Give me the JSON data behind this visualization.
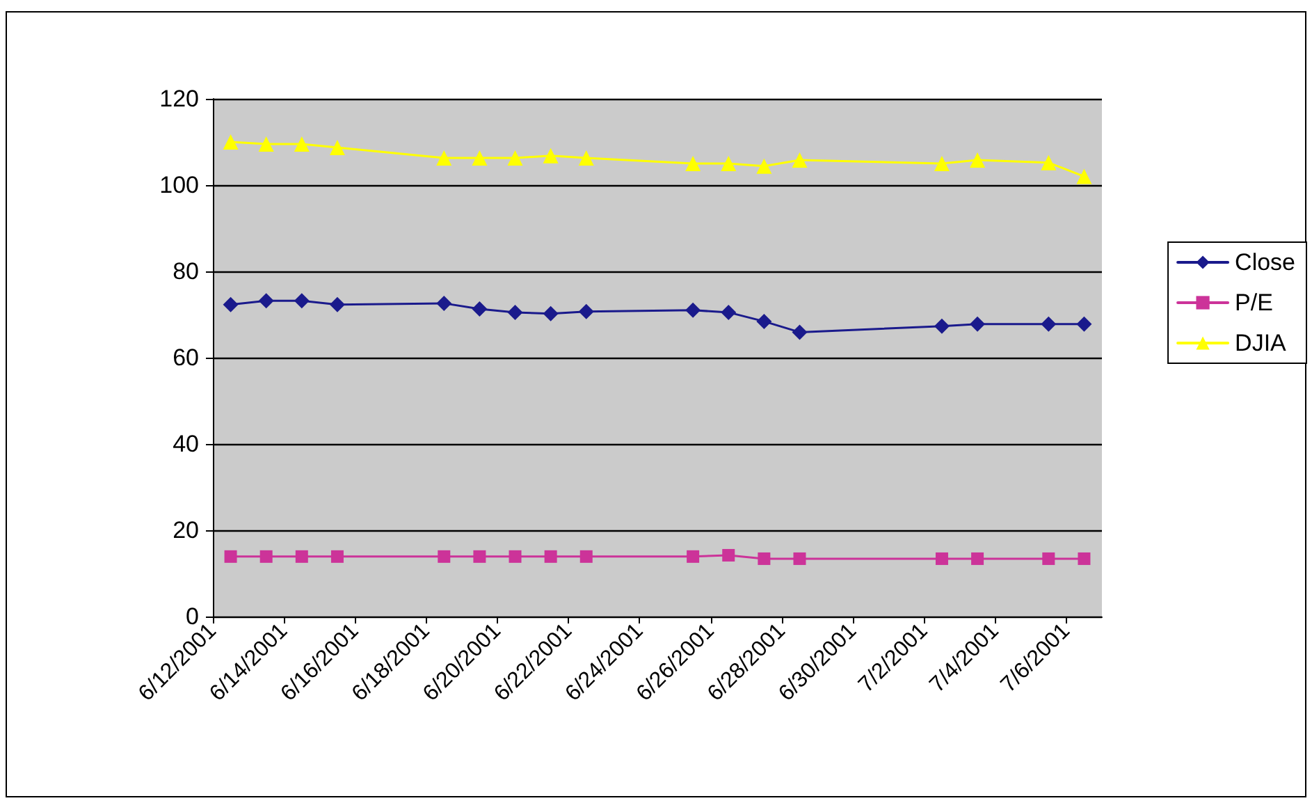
{
  "chart_data": {
    "type": "line",
    "x": [
      "2001-06-12T12:00",
      "2001-06-13T12:00",
      "2001-06-14T12:00",
      "2001-06-15T12:00",
      "2001-06-18T12:00",
      "2001-06-19T12:00",
      "2001-06-20T12:00",
      "2001-06-21T12:00",
      "2001-06-22T12:00",
      "2001-06-25T12:00",
      "2001-06-26T12:00",
      "2001-06-27T12:00",
      "2001-06-28T12:00",
      "2001-07-02T12:00",
      "2001-07-03T12:00",
      "2001-07-05T12:00",
      "2001-07-06T12:00"
    ],
    "series": [
      {
        "name": "Close",
        "color": "#1a1a8c",
        "marker": "diamond",
        "values": [
          72.3,
          73.2,
          73.2,
          72.3,
          72.6,
          71.3,
          70.5,
          70.2,
          70.7,
          71.0,
          70.5,
          68.4,
          65.9,
          67.3,
          67.8,
          67.8,
          67.8
        ]
      },
      {
        "name": "P/E",
        "color": "#cc3399",
        "marker": "square",
        "values": [
          13.9,
          13.9,
          13.9,
          13.9,
          13.9,
          13.9,
          13.9,
          13.9,
          13.9,
          13.9,
          14.2,
          13.4,
          13.4,
          13.4,
          13.4,
          13.4,
          13.4
        ]
      },
      {
        "name": "DJIA",
        "color": "#ffff00",
        "marker": "triangle",
        "values": [
          110.0,
          109.5,
          109.5,
          108.7,
          106.3,
          106.3,
          106.3,
          106.8,
          106.3,
          105.0,
          105.0,
          104.4,
          105.8,
          105.0,
          105.8,
          105.2,
          102.0
        ]
      }
    ],
    "xlim": [
      "2001-06-12",
      "2001-07-07"
    ],
    "xticks": [
      {
        "value": "2001-06-12",
        "label": "6/12/2001"
      },
      {
        "value": "2001-06-14",
        "label": "6/14/2001"
      },
      {
        "value": "2001-06-16",
        "label": "6/16/2001"
      },
      {
        "value": "2001-06-18",
        "label": "6/18/2001"
      },
      {
        "value": "2001-06-20",
        "label": "6/20/2001"
      },
      {
        "value": "2001-06-22",
        "label": "6/22/2001"
      },
      {
        "value": "2001-06-24",
        "label": "6/24/2001"
      },
      {
        "value": "2001-06-26",
        "label": "6/26/2001"
      },
      {
        "value": "2001-06-28",
        "label": "6/28/2001"
      },
      {
        "value": "2001-06-30",
        "label": "6/30/2001"
      },
      {
        "value": "2001-07-02",
        "label": "7/2/2001"
      },
      {
        "value": "2001-07-04",
        "label": "7/4/2001"
      },
      {
        "value": "2001-07-06",
        "label": "7/6/2001"
      }
    ],
    "ylim": [
      0,
      120
    ],
    "yticks": [
      0,
      20,
      40,
      60,
      80,
      100,
      120
    ],
    "grid": "y",
    "legend": "right",
    "line_style": "solid"
  }
}
